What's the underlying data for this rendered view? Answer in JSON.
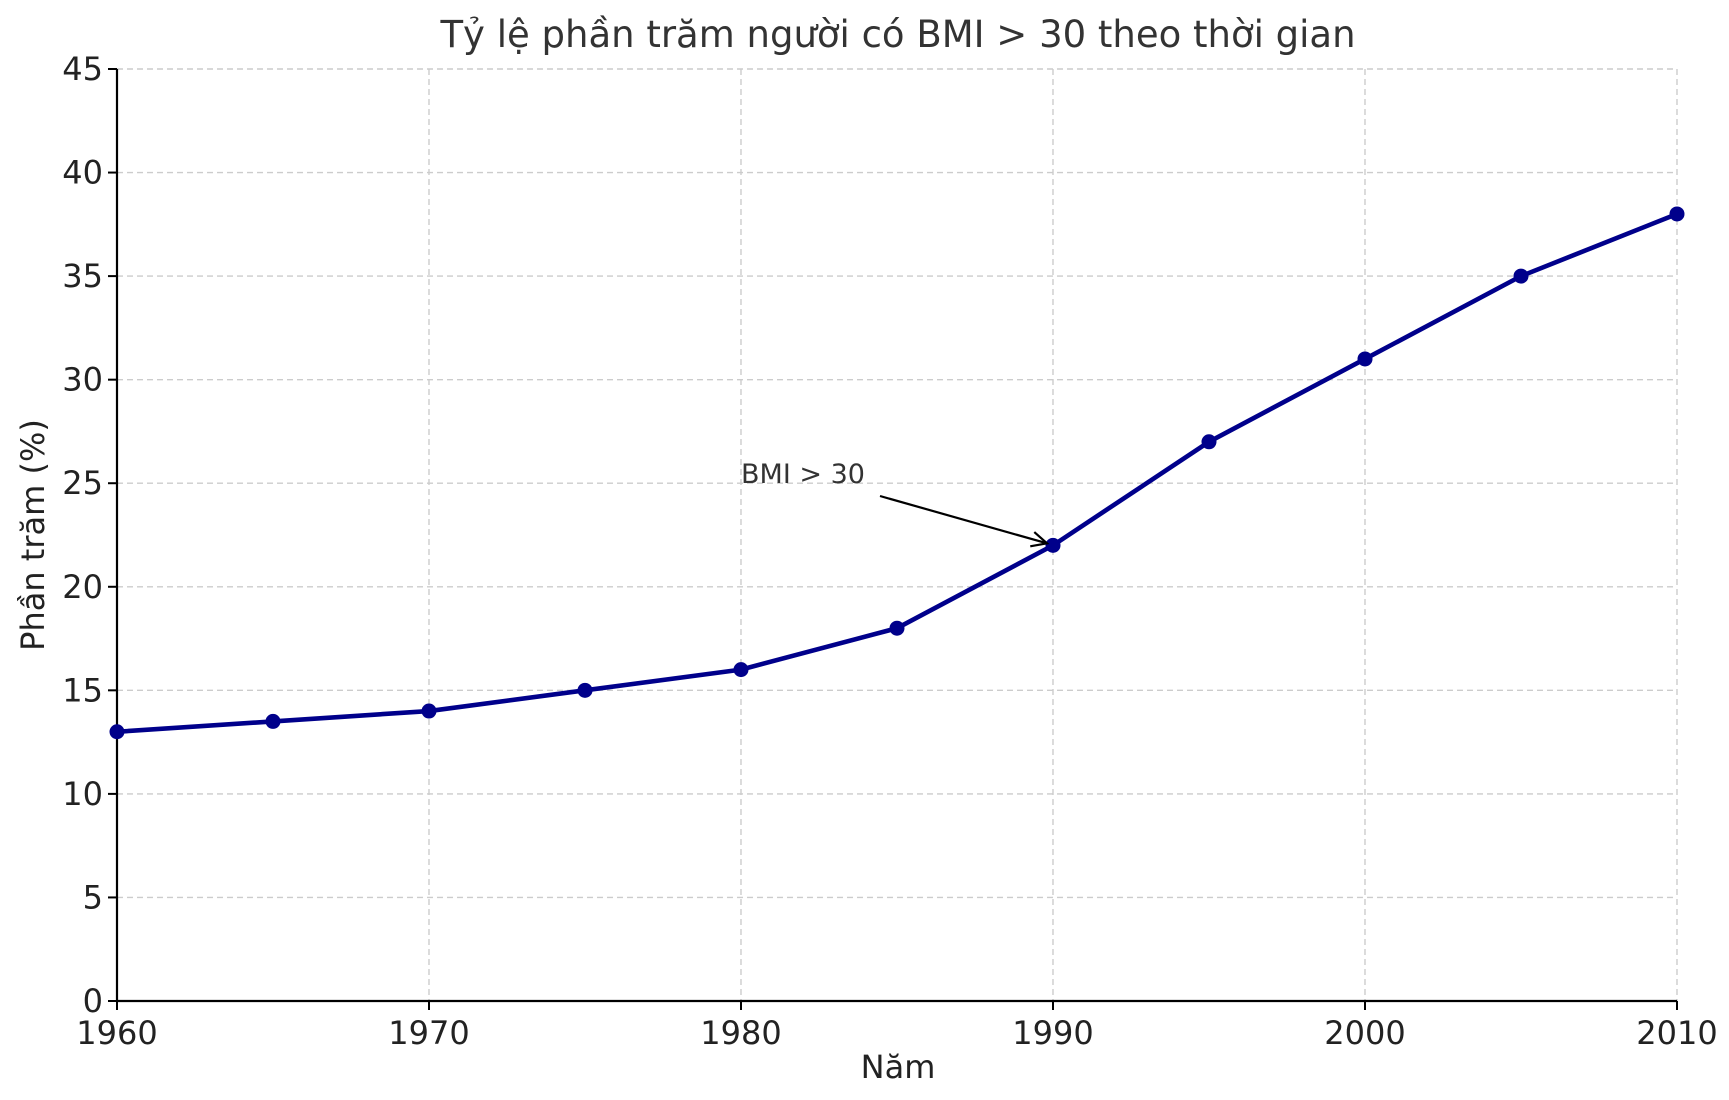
{
  "chart_data": {
    "type": "line",
    "title": "Tỷ lệ phần trăm người có BMI > 30 theo thời gian",
    "xlabel": "Năm",
    "ylabel": "Phần trăm (%)",
    "x": [
      1960,
      1965,
      1970,
      1975,
      1980,
      1985,
      1990,
      1995,
      2000,
      2005,
      2010
    ],
    "series": [
      {
        "values": [
          13,
          13.5,
          14,
          15,
          16,
          18,
          22,
          27,
          31,
          35,
          38
        ],
        "color": "#00008b"
      }
    ],
    "xlim": [
      1960,
      2010
    ],
    "ylim": [
      0,
      45
    ],
    "xticks": [
      1960,
      1970,
      1980,
      1990,
      2000,
      2010
    ],
    "yticks": [
      0,
      5,
      10,
      15,
      20,
      25,
      30,
      35,
      40,
      45
    ],
    "grid": true,
    "annotations": [
      {
        "text": "BMI > 30",
        "x": 1990,
        "y": 22,
        "text_x": 1980,
        "text_y": 25
      }
    ]
  }
}
